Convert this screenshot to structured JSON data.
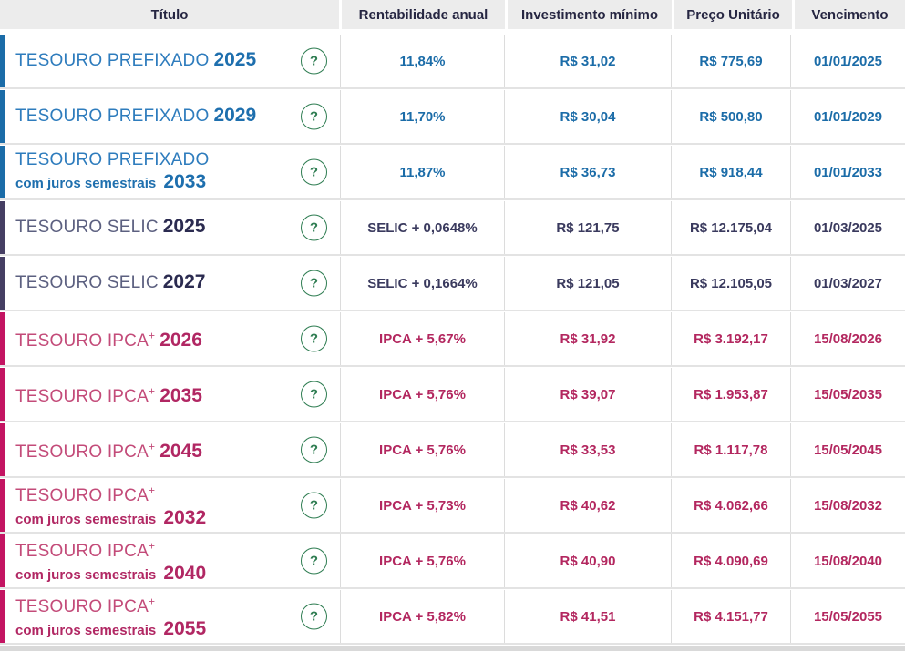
{
  "header": {
    "titulo": "Título",
    "rentabilidade": "Rentabilidade anual",
    "investimento": "Investimento mínimo",
    "preco": "Preço Unitário",
    "vencimento": "Vencimento"
  },
  "help_glyph": "?",
  "colors": {
    "header_bg": "#ececec",
    "divider": "#e3e3e3",
    "help_green": "#2f7d52",
    "themes": {
      "blue": {
        "bar": "#1b6ca8",
        "main": "#2e7cbd",
        "year": "#1e6fae",
        "val": "#1b6ca8"
      },
      "navy": {
        "bar": "#453e63",
        "main": "#5c6080",
        "year": "#2b2b50",
        "val": "#3a3a5e"
      },
      "pink": {
        "bar": "#c31462",
        "main": "#c34b79",
        "year": "#b12763",
        "val": "#b3275f"
      }
    }
  },
  "rows": [
    {
      "theme": "blue",
      "title": "TESOURO PREFIXADO",
      "plus": "",
      "subtitle": "",
      "year": "2025",
      "rentabilidade": "11,84%",
      "investimento_minimo": "R$ 31,02",
      "preco_unitario": "R$ 775,69",
      "vencimento": "01/01/2025"
    },
    {
      "theme": "blue",
      "title": "TESOURO PREFIXADO",
      "plus": "",
      "subtitle": "",
      "year": "2029",
      "rentabilidade": "11,70%",
      "investimento_minimo": "R$ 30,04",
      "preco_unitario": "R$ 500,80",
      "vencimento": "01/01/2029"
    },
    {
      "theme": "blue",
      "title": "TESOURO PREFIXADO",
      "plus": "",
      "subtitle": "com juros semestrais",
      "year": "2033",
      "rentabilidade": "11,87%",
      "investimento_minimo": "R$ 36,73",
      "preco_unitario": "R$ 918,44",
      "vencimento": "01/01/2033"
    },
    {
      "theme": "navy",
      "title": "TESOURO SELIC",
      "plus": "",
      "subtitle": "",
      "year": "2025",
      "rentabilidade": "SELIC + 0,0648%",
      "investimento_minimo": "R$ 121,75",
      "preco_unitario": "R$ 12.175,04",
      "vencimento": "01/03/2025"
    },
    {
      "theme": "navy",
      "title": "TESOURO SELIC",
      "plus": "",
      "subtitle": "",
      "year": "2027",
      "rentabilidade": "SELIC + 0,1664%",
      "investimento_minimo": "R$ 121,05",
      "preco_unitario": "R$ 12.105,05",
      "vencimento": "01/03/2027"
    },
    {
      "theme": "pink",
      "title": "TESOURO IPCA",
      "plus": "+",
      "subtitle": "",
      "year": "2026",
      "rentabilidade": "IPCA + 5,67%",
      "investimento_minimo": "R$ 31,92",
      "preco_unitario": "R$ 3.192,17",
      "vencimento": "15/08/2026"
    },
    {
      "theme": "pink",
      "title": "TESOURO IPCA",
      "plus": "+",
      "subtitle": "",
      "year": "2035",
      "rentabilidade": "IPCA + 5,76%",
      "investimento_minimo": "R$ 39,07",
      "preco_unitario": "R$ 1.953,87",
      "vencimento": "15/05/2035"
    },
    {
      "theme": "pink",
      "title": "TESOURO IPCA",
      "plus": "+",
      "subtitle": "",
      "year": "2045",
      "rentabilidade": "IPCA + 5,76%",
      "investimento_minimo": "R$ 33,53",
      "preco_unitario": "R$ 1.117,78",
      "vencimento": "15/05/2045"
    },
    {
      "theme": "pink",
      "title": "TESOURO IPCA",
      "plus": "+",
      "subtitle": "com juros semestrais",
      "year": "2032",
      "rentabilidade": "IPCA + 5,73%",
      "investimento_minimo": "R$ 40,62",
      "preco_unitario": "R$ 4.062,66",
      "vencimento": "15/08/2032"
    },
    {
      "theme": "pink",
      "title": "TESOURO IPCA",
      "plus": "+",
      "subtitle": "com juros semestrais",
      "year": "2040",
      "rentabilidade": "IPCA + 5,76%",
      "investimento_minimo": "R$ 40,90",
      "preco_unitario": "R$ 4.090,69",
      "vencimento": "15/08/2040"
    },
    {
      "theme": "pink",
      "title": "TESOURO IPCA",
      "plus": "+",
      "subtitle": "com juros semestrais",
      "year": "2055",
      "rentabilidade": "IPCA + 5,82%",
      "investimento_minimo": "R$ 41,51",
      "preco_unitario": "R$ 4.151,77",
      "vencimento": "15/05/2055"
    }
  ]
}
